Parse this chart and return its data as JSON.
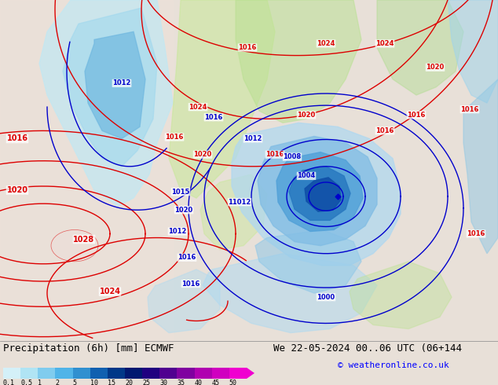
{
  "title_left": "Precipitation (6h) [mm] ECMWF",
  "title_right": "We 22-05-2024 00..06 UTC (06+144",
  "copyright": "© weatheronline.co.uk",
  "colorbar_levels": [
    0.1,
    0.5,
    1,
    2,
    5,
    10,
    15,
    20,
    25,
    30,
    35,
    40,
    45,
    50
  ],
  "colorbar_colors": [
    "#d4f0f8",
    "#b0e4f4",
    "#80ccee",
    "#50b4e8",
    "#3090d0",
    "#1060b0",
    "#003888",
    "#001870",
    "#200080",
    "#500090",
    "#8000a0",
    "#b000b0",
    "#d000c0",
    "#f000d0"
  ],
  "land_color": "#c8c0b0",
  "ocean_color": "#dce8f0",
  "bg_light": "#ede8e0",
  "bg_map": "#e8e0d8",
  "precip_light_cyan": "#c0e8f4",
  "precip_mid_cyan": "#80ccee",
  "precip_deep_blue": "#3080cc",
  "precip_dark_blue": "#1050a0",
  "precip_green_light": "#c8e898",
  "bottom_bg": "#d8d8d8",
  "text_color": "#000000",
  "font_size_title": 9,
  "font_size_labels": 7,
  "font_size_copyright": 8,
  "isobar_red_color": "#dd0000",
  "isobar_blue_color": "#0000cc",
  "isobar_lw": 1.0
}
